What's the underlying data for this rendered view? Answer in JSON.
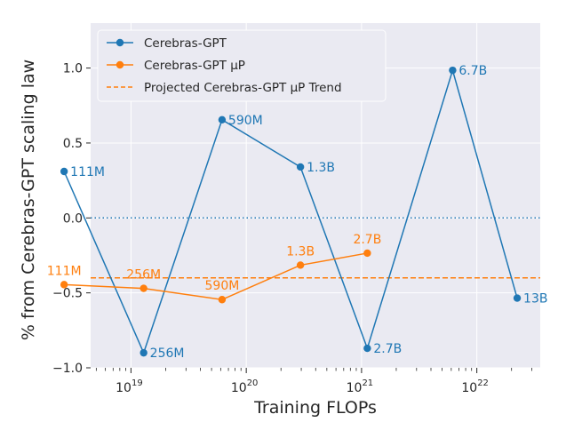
{
  "chart_data": {
    "type": "line",
    "xscale": "log",
    "xlim_exp": [
      18.65,
      22.55
    ],
    "ylim": [
      -1.0,
      1.3
    ],
    "xlabel": "Training FLOPs",
    "ylabel": "% from Cerebras-GPT scaling law",
    "y_ticks": [
      -1.0,
      -0.5,
      0.0,
      0.5,
      1.0
    ],
    "y_tick_labels": [
      "−1.0",
      "−0.5",
      "0.0",
      "0.5",
      "1.0"
    ],
    "x_major_exps": [
      19,
      20,
      21,
      22
    ],
    "x_tick_base": "10",
    "series": [
      {
        "name": "Cerebras-GPT",
        "color": "#1f77b4",
        "x_exp": [
          18.42,
          19.11,
          19.79,
          20.47,
          21.05,
          21.79,
          22.35
        ],
        "y": [
          0.31,
          -0.9,
          0.655,
          0.34,
          -0.87,
          0.985,
          -0.535
        ],
        "point_labels": [
          "111M",
          "256M",
          "590M",
          "1.3B",
          "2.7B",
          "6.7B",
          "13B"
        ]
      },
      {
        "name": "Cerebras-GPT μP",
        "color": "#ff7f0e",
        "x_exp": [
          18.42,
          19.11,
          19.79,
          20.47,
          21.05
        ],
        "y": [
          -0.445,
          -0.47,
          -0.545,
          -0.315,
          -0.235
        ],
        "point_labels": [
          "111M",
          "256M",
          "590M",
          "1.3B",
          "2.7B"
        ]
      }
    ],
    "reference_lines": [
      {
        "name": "Projected Cerebras-GPT μP Trend",
        "y": -0.4,
        "color": "#ff7f0e",
        "style": "dashed"
      },
      {
        "name": "",
        "y": 0.0,
        "color": "#1f77b4",
        "style": "dotted"
      }
    ],
    "legend": {
      "position": "top-left",
      "entries": [
        "Cerebras-GPT",
        "Cerebras-GPT μP",
        "Projected Cerebras-GPT μP Trend"
      ]
    }
  }
}
